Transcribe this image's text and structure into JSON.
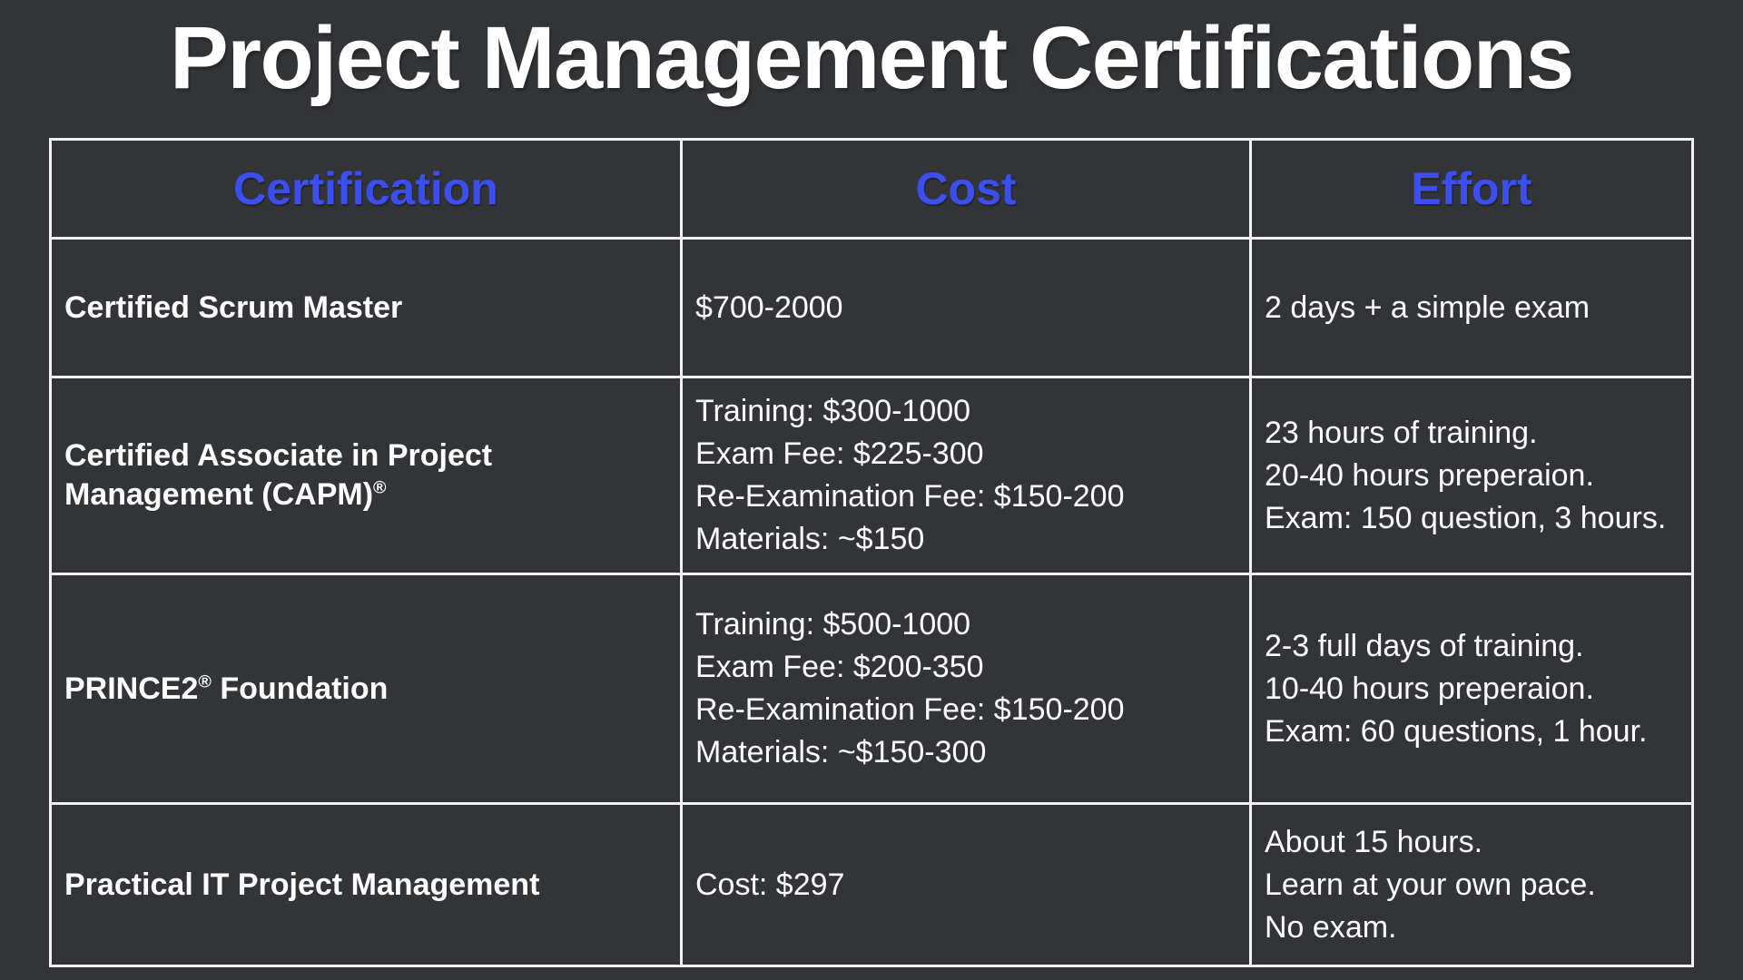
{
  "title": "Project Management Certifications",
  "colors": {
    "background": "#333438",
    "accent_blue": "#3B4FF0",
    "border_white": "#F2F2F2",
    "text_white": "#FFFFFF"
  },
  "table": {
    "columns": [
      "Certification",
      "Cost",
      "Effort"
    ],
    "rows": [
      {
        "cert": {
          "pre": "Certified Scrum Master",
          "sup": "",
          "post": ""
        },
        "cost": "$700-2000",
        "effort": "2 days + a simple exam"
      },
      {
        "cert": {
          "pre": "Certified Associate in Project Management (CAPM)",
          "sup": "®",
          "post": ""
        },
        "cost": "Training: $300-1000\nExam Fee: $225-300\nRe-Examination Fee: $150-200\nMaterials: ~$150",
        "effort": "23 hours of training.\n20-40 hours preperaion.\nExam: 150 question, 3 hours."
      },
      {
        "cert": {
          "pre": "PRINCE2",
          "sup": "®",
          "post": " Foundation"
        },
        "cost": "Training: $500-1000\nExam Fee: $200-350\nRe-Examination Fee: $150-200\nMaterials: ~$150-300",
        "effort": "2-3 full days of training.\n10-40 hours preperaion.\nExam: 60 questions, 1 hour."
      },
      {
        "cert": {
          "pre": "Practical IT Project Management",
          "sup": "",
          "post": ""
        },
        "cost": "Cost: $297",
        "effort": "About 15 hours.\nLearn at your own pace.\nNo exam."
      }
    ]
  }
}
